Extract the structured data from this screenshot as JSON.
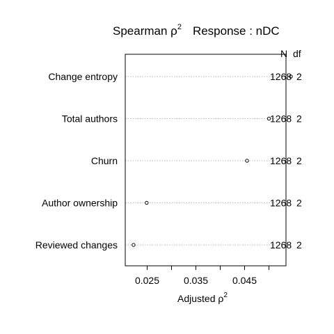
{
  "chart_data": {
    "type": "scatter",
    "title_prefix": "Spearman ρ",
    "title_sup": "2",
    "title_response": "Response : nDC",
    "xlabel_prefix": "Adjusted ρ",
    "xlabel_sup": "2",
    "column_headers": {
      "n": "N",
      "df": "df"
    },
    "xlim": [
      0.0205,
      0.0535
    ],
    "x_ticks": [
      0.025,
      0.035,
      0.045
    ],
    "x_tick_labels": [
      "0.025",
      "0.035",
      "0.045"
    ],
    "grid": "dotted horizontal guide lines",
    "rows": [
      {
        "label": "Change entropy",
        "value": 0.0545,
        "n": "1268",
        "df": "2"
      },
      {
        "label": "Total authors",
        "value": 0.05,
        "n": "1268",
        "df": "2"
      },
      {
        "label": "Churn",
        "value": 0.0455,
        "n": "1268",
        "df": "2"
      },
      {
        "label": "Author ownership",
        "value": 0.0249,
        "n": "1268",
        "df": "2"
      },
      {
        "label": "Reviewed changes",
        "value": 0.0222,
        "n": "1268",
        "df": "2"
      }
    ]
  }
}
